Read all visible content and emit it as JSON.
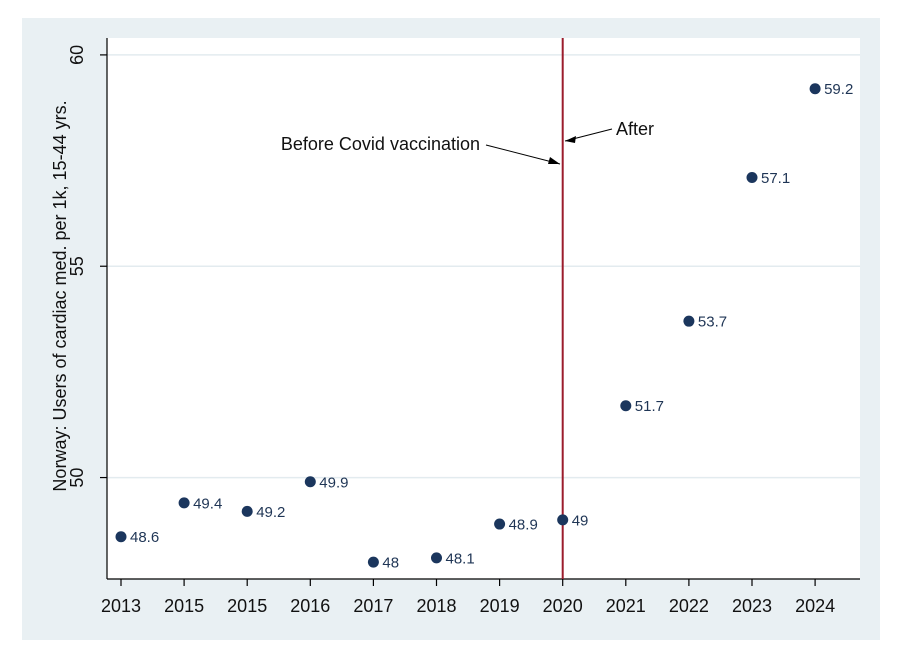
{
  "chart_data": {
    "type": "scatter",
    "title": "",
    "xlabel": "",
    "ylabel": "Norway: Users of cardiac med. per 1k, 15-44 yrs.",
    "categories": [
      "2013",
      "2015",
      "2015",
      "2016",
      "2017",
      "2018",
      "2019",
      "2020",
      "2021",
      "2022",
      "2023",
      "2024"
    ],
    "values": [
      48.6,
      49.4,
      49.2,
      49.9,
      48,
      48.1,
      48.9,
      49,
      51.7,
      53.7,
      57.1,
      59.2
    ],
    "data_labels": [
      "48.6",
      "49.4",
      "49.2",
      "49.9",
      "48",
      "48.1",
      "48.9",
      "49",
      "51.7",
      "53.7",
      "57.1",
      "59.2"
    ],
    "ylim": [
      47.6,
      60.4
    ],
    "yticks": [
      50,
      55,
      60
    ],
    "grid": "horizontal",
    "vertical_line_at": "2020",
    "annotations": {
      "before": "Before Covid vaccination",
      "after": "After"
    },
    "colors": {
      "outer_background": "#e9f0f3",
      "plot_background": "#ffffff",
      "marker": "#1b365d",
      "label": "#1f3555",
      "vline": "#9b1c2c",
      "grid": "#e3ebef"
    }
  }
}
